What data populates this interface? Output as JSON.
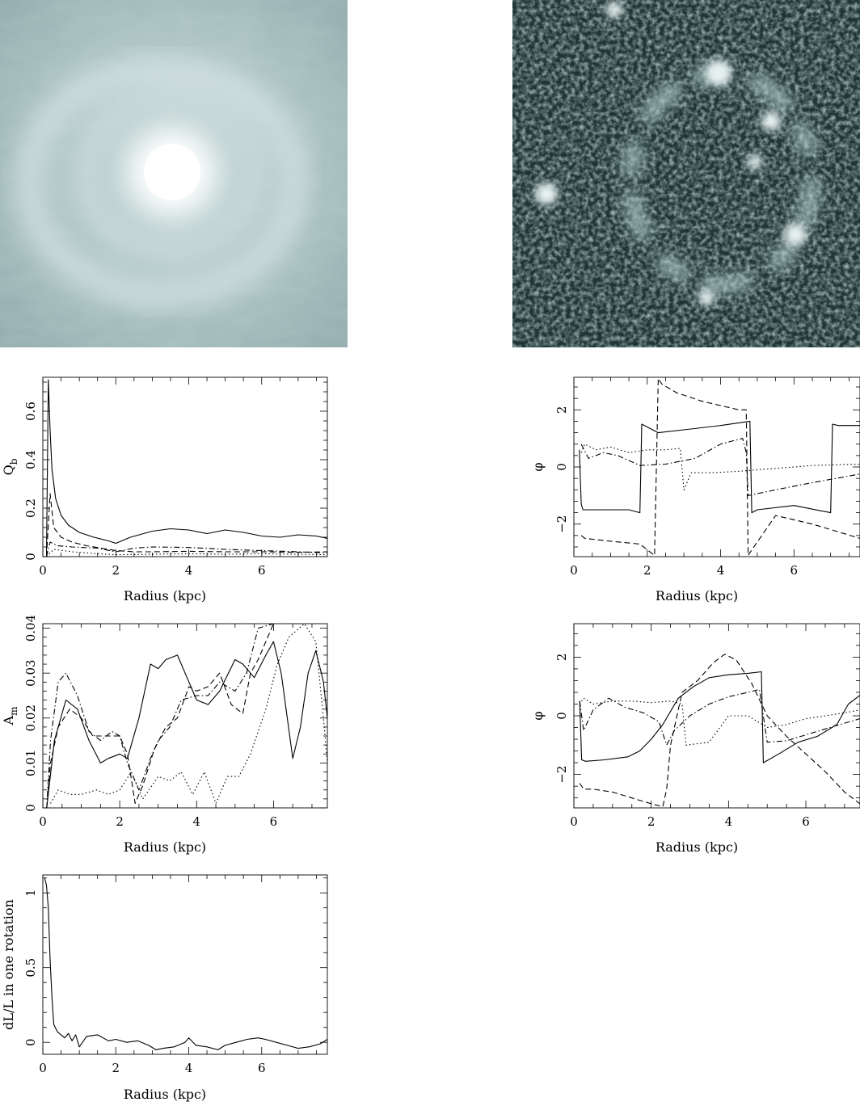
{
  "images": {
    "left": {
      "icon": "galaxy-ring-smooth-image"
    },
    "right": {
      "icon": "galaxy-ring-residual-image"
    }
  },
  "chart_data": [
    {
      "id": "qb",
      "type": "line",
      "xlabel": "Radius (kpc)",
      "ylabel": "Q",
      "ylabel_sub": "b",
      "xlim": [
        0,
        7.8
      ],
      "ylim": [
        0,
        0.74
      ],
      "xticks": [
        0,
        2,
        4,
        6
      ],
      "yticks": [
        0,
        0.2,
        0.4,
        0.6
      ],
      "ytick_labels": [
        "0",
        "0.2",
        "0.4",
        "0.6"
      ],
      "series": [
        {
          "style": "solid",
          "x": [
            0.1,
            0.15,
            0.2,
            0.25,
            0.35,
            0.5,
            0.7,
            1.0,
            1.4,
            1.8,
            2.0,
            2.4,
            3.0,
            3.5,
            4.0,
            4.5,
            5.0,
            5.5,
            6.0,
            6.5,
            7.0,
            7.5,
            7.8
          ],
          "y": [
            0.0,
            0.73,
            0.52,
            0.36,
            0.24,
            0.17,
            0.13,
            0.1,
            0.08,
            0.065,
            0.055,
            0.08,
            0.105,
            0.115,
            0.11,
            0.095,
            0.11,
            0.1,
            0.085,
            0.08,
            0.09,
            0.085,
            0.075
          ]
        },
        {
          "style": "dashed",
          "x": [
            0.1,
            0.2,
            0.3,
            0.5,
            0.8,
            1.2,
            1.6,
            2.0,
            2.5,
            3.0,
            4.0,
            5.0,
            6.0,
            7.0,
            7.8
          ],
          "y": [
            0.0,
            0.26,
            0.12,
            0.08,
            0.06,
            0.045,
            0.035,
            0.025,
            0.02,
            0.02,
            0.022,
            0.02,
            0.02,
            0.018,
            0.02
          ]
        },
        {
          "style": "dash-dot",
          "x": [
            0.1,
            0.2,
            0.4,
            0.8,
            1.5,
            2.0,
            2.5,
            3.0,
            4.0,
            5.0,
            6.0,
            7.0,
            7.8
          ],
          "y": [
            0.0,
            0.06,
            0.045,
            0.04,
            0.035,
            0.02,
            0.035,
            0.04,
            0.038,
            0.03,
            0.025,
            0.02,
            0.015
          ]
        },
        {
          "style": "dotted",
          "x": [
            0.1,
            0.3,
            0.8,
            1.5,
            2.0,
            3.0,
            4.0,
            5.0,
            6.0,
            7.0,
            7.8
          ],
          "y": [
            0.0,
            0.03,
            0.02,
            0.012,
            0.008,
            0.01,
            0.012,
            0.01,
            0.012,
            0.01,
            0.008
          ]
        }
      ]
    },
    {
      "id": "phase-top",
      "type": "line",
      "xlabel": "Radius (kpc)",
      "ylabel": "φ",
      "xlim": [
        0,
        7.8
      ],
      "ylim": [
        -3.14,
        3.14
      ],
      "xticks": [
        0,
        2,
        4,
        6
      ],
      "yticks": [
        -2,
        0,
        2
      ],
      "ytick_labels": [
        "−2",
        "0",
        "2"
      ],
      "series": [
        {
          "style": "solid",
          "x": [
            0.15,
            0.2,
            0.25,
            0.5,
            1.0,
            1.5,
            1.8,
            1.85,
            2.0,
            2.3,
            3.0,
            4.0,
            4.8,
            4.85,
            5.0,
            6.0,
            7.0,
            7.05,
            7.2,
            7.8
          ],
          "y": [
            0.6,
            -1.3,
            -1.5,
            -1.5,
            -1.5,
            -1.5,
            -1.6,
            1.5,
            1.4,
            1.2,
            1.3,
            1.45,
            1.6,
            -1.6,
            -1.5,
            -1.35,
            -1.6,
            1.5,
            1.45,
            1.45
          ]
        },
        {
          "style": "dashed",
          "x": [
            0.2,
            0.3,
            1.0,
            1.8,
            2.2,
            2.3,
            2.4,
            2.8,
            3.5,
            4.5,
            4.7,
            4.75,
            4.8,
            5.5,
            6.5,
            7.8
          ],
          "y": [
            -2.4,
            -2.5,
            -2.6,
            -2.7,
            -3.1,
            3.1,
            2.9,
            2.6,
            2.3,
            2.0,
            2.0,
            -3.1,
            -3.0,
            -1.7,
            -2.0,
            -2.5
          ]
        },
        {
          "style": "dash-dot",
          "x": [
            0.2,
            0.4,
            0.8,
            1.2,
            1.8,
            2.5,
            3.3,
            4.0,
            4.6,
            4.7,
            4.75,
            5.5,
            6.5,
            7.8
          ],
          "y": [
            0.8,
            0.3,
            0.5,
            0.4,
            0.05,
            0.1,
            0.3,
            0.8,
            1.0,
            0.5,
            -1.0,
            -0.8,
            -0.55,
            -0.25
          ]
        },
        {
          "style": "dotted",
          "x": [
            0.2,
            0.3,
            0.6,
            1.0,
            1.5,
            2.0,
            2.5,
            2.9,
            3.0,
            3.2,
            3.8,
            4.5,
            5.5,
            6.5,
            7.8
          ],
          "y": [
            0.5,
            0.8,
            0.6,
            0.7,
            0.5,
            0.6,
            0.6,
            0.65,
            -0.8,
            -0.2,
            -0.2,
            -0.15,
            -0.05,
            0.05,
            0.1
          ]
        }
      ]
    },
    {
      "id": "an",
      "type": "line",
      "xlabel": "Radius (kpc)",
      "ylabel": "A",
      "ylabel_sub": "m",
      "xlim": [
        0,
        7.4
      ],
      "ylim": [
        0,
        0.041
      ],
      "xticks": [
        0,
        2,
        4,
        6
      ],
      "yticks": [
        0,
        0.01,
        0.02,
        0.03,
        0.04
      ],
      "ytick_labels": [
        "0",
        "0.01",
        "0.02",
        "0.03",
        "0.04"
      ],
      "series": [
        {
          "style": "solid",
          "x": [
            0.1,
            0.3,
            0.6,
            0.9,
            1.2,
            1.5,
            1.7,
            2.0,
            2.2,
            2.5,
            2.8,
            3.0,
            3.2,
            3.5,
            3.8,
            4.0,
            4.3,
            4.6,
            5.0,
            5.2,
            5.5,
            5.8,
            6.0,
            6.2,
            6.5,
            6.7,
            6.9,
            7.1,
            7.3,
            7.4
          ],
          "y": [
            0.0,
            0.015,
            0.024,
            0.022,
            0.015,
            0.01,
            0.011,
            0.012,
            0.011,
            0.02,
            0.032,
            0.031,
            0.033,
            0.034,
            0.028,
            0.024,
            0.023,
            0.026,
            0.033,
            0.032,
            0.029,
            0.034,
            0.037,
            0.03,
            0.011,
            0.018,
            0.03,
            0.035,
            0.028,
            0.02
          ]
        },
        {
          "style": "dashed",
          "x": [
            0.1,
            0.2,
            0.4,
            0.7,
            1.0,
            1.3,
            1.6,
            2.0,
            2.2,
            2.4,
            2.6,
            2.9,
            3.2,
            3.5,
            3.8,
            4.0,
            4.3,
            4.6,
            4.9,
            5.2,
            5.4,
            5.6,
            5.8,
            6.0
          ],
          "y": [
            0.0,
            0.01,
            0.018,
            0.022,
            0.02,
            0.016,
            0.016,
            0.016,
            0.012,
            0.001,
            0.005,
            0.013,
            0.018,
            0.02,
            0.027,
            0.026,
            0.027,
            0.03,
            0.023,
            0.021,
            0.03,
            0.033,
            0.037,
            0.041
          ]
        },
        {
          "style": "dash-dot",
          "x": [
            0.1,
            0.2,
            0.4,
            0.6,
            0.9,
            1.2,
            1.5,
            1.8,
            2.0,
            2.2,
            2.5,
            2.8,
            3.0,
            3.3,
            3.6,
            4.0,
            4.3,
            4.6,
            5.0,
            5.3,
            5.6,
            6.0
          ],
          "y": [
            0.0,
            0.015,
            0.028,
            0.03,
            0.025,
            0.017,
            0.015,
            0.017,
            0.016,
            0.01,
            0.004,
            0.011,
            0.015,
            0.018,
            0.024,
            0.025,
            0.025,
            0.028,
            0.026,
            0.03,
            0.04,
            0.041
          ]
        },
        {
          "style": "dotted",
          "x": [
            0.2,
            0.4,
            0.7,
            1.0,
            1.4,
            1.7,
            2.0,
            2.3,
            2.6,
            3.0,
            3.3,
            3.6,
            3.9,
            4.2,
            4.5,
            4.8,
            5.1,
            5.4,
            5.8,
            6.1,
            6.4,
            6.8,
            7.1,
            7.3,
            7.4
          ],
          "y": [
            0.001,
            0.004,
            0.003,
            0.003,
            0.004,
            0.003,
            0.004,
            0.008,
            0.002,
            0.007,
            0.006,
            0.008,
            0.003,
            0.008,
            0.001,
            0.007,
            0.007,
            0.012,
            0.022,
            0.032,
            0.038,
            0.041,
            0.037,
            0.02,
            0.01
          ]
        }
      ]
    },
    {
      "id": "phase-bottom",
      "type": "line",
      "xlabel": "Radius (kpc)",
      "ylabel": "φ",
      "xlim": [
        0,
        7.4
      ],
      "ylim": [
        -3.14,
        3.14
      ],
      "xticks": [
        0,
        2,
        4,
        6
      ],
      "yticks": [
        -2,
        0,
        2
      ],
      "ytick_labels": [
        "−2",
        "0",
        "2"
      ],
      "series": [
        {
          "style": "solid",
          "x": [
            0.15,
            0.2,
            0.3,
            0.8,
            1.4,
            1.7,
            2.0,
            2.3,
            2.7,
            3.1,
            3.5,
            4.0,
            4.5,
            4.85,
            4.9,
            5.3,
            5.8,
            6.3,
            6.8,
            7.1,
            7.4
          ],
          "y": [
            0.5,
            -1.5,
            -1.55,
            -1.5,
            -1.4,
            -1.2,
            -0.8,
            -0.3,
            0.6,
            1.0,
            1.3,
            1.4,
            1.45,
            1.5,
            -1.6,
            -1.3,
            -0.9,
            -0.7,
            -0.3,
            0.4,
            0.7
          ]
        },
        {
          "style": "dashed",
          "x": [
            0.15,
            0.25,
            0.5,
            1.0,
            1.5,
            2.0,
            2.3,
            2.4,
            2.5,
            2.8,
            3.2,
            3.6,
            3.9,
            4.2,
            4.6,
            5.0,
            5.5,
            6.0,
            6.5,
            7.0,
            7.4
          ],
          "y": [
            -2.3,
            -2.5,
            -2.5,
            -2.6,
            -2.8,
            -3.0,
            -3.1,
            -2.5,
            -1.0,
            0.8,
            1.2,
            1.8,
            2.1,
            1.9,
            1.1,
            0.0,
            -0.7,
            -1.3,
            -1.9,
            -2.6,
            -3.0
          ]
        },
        {
          "style": "dash-dot",
          "x": [
            0.15,
            0.25,
            0.5,
            0.9,
            1.3,
            1.8,
            2.2,
            2.4,
            2.6,
            3.0,
            3.5,
            4.0,
            4.5,
            4.8,
            5.0,
            5.5,
            6.0,
            6.5,
            7.0,
            7.4
          ],
          "y": [
            0.5,
            -0.5,
            0.2,
            0.6,
            0.3,
            0.1,
            -0.2,
            -1.0,
            -0.5,
            0.0,
            0.4,
            0.65,
            0.8,
            0.9,
            -0.9,
            -0.85,
            -0.65,
            -0.45,
            -0.25,
            -0.1
          ]
        },
        {
          "style": "dotted",
          "x": [
            0.2,
            0.25,
            0.5,
            1.0,
            1.5,
            2.0,
            2.5,
            2.8,
            2.9,
            3.5,
            4.0,
            4.5,
            5.0,
            5.5,
            6.0,
            6.5,
            7.0,
            7.4
          ],
          "y": [
            0.5,
            0.6,
            0.4,
            0.5,
            0.5,
            0.45,
            0.5,
            0.4,
            -1.0,
            -0.9,
            0.0,
            0.0,
            -0.4,
            -0.3,
            -0.1,
            0.0,
            0.1,
            0.2
          ]
        }
      ]
    },
    {
      "id": "dll",
      "type": "line",
      "xlabel": "Radius (kpc)",
      "ylabel": "dL/L in one rotation",
      "xlim": [
        0,
        7.8
      ],
      "ylim": [
        -0.08,
        1.12
      ],
      "xticks": [
        0,
        2,
        4,
        6
      ],
      "yticks": [
        0,
        0.5,
        1
      ],
      "ytick_labels": [
        "0",
        "0.5",
        "1"
      ],
      "series": [
        {
          "style": "solid",
          "x": [
            0.05,
            0.1,
            0.15,
            0.2,
            0.25,
            0.3,
            0.4,
            0.5,
            0.6,
            0.7,
            0.8,
            0.9,
            1.0,
            1.2,
            1.5,
            1.8,
            2.0,
            2.3,
            2.6,
            2.9,
            3.1,
            3.3,
            3.6,
            3.9,
            4.0,
            4.2,
            4.5,
            4.8,
            5.0,
            5.3,
            5.6,
            5.9,
            6.1,
            6.4,
            6.7,
            7.0,
            7.3,
            7.6,
            7.8
          ],
          "y": [
            1.1,
            1.05,
            0.9,
            0.55,
            0.3,
            0.12,
            0.07,
            0.05,
            0.03,
            0.06,
            0.01,
            0.05,
            -0.03,
            0.04,
            0.05,
            0.01,
            0.02,
            0.0,
            0.01,
            -0.02,
            -0.05,
            -0.04,
            -0.03,
            0.0,
            0.03,
            -0.02,
            -0.03,
            -0.05,
            -0.02,
            0.0,
            0.02,
            0.03,
            0.02,
            0.0,
            -0.02,
            -0.04,
            -0.03,
            -0.01,
            0.02
          ]
        }
      ]
    }
  ]
}
